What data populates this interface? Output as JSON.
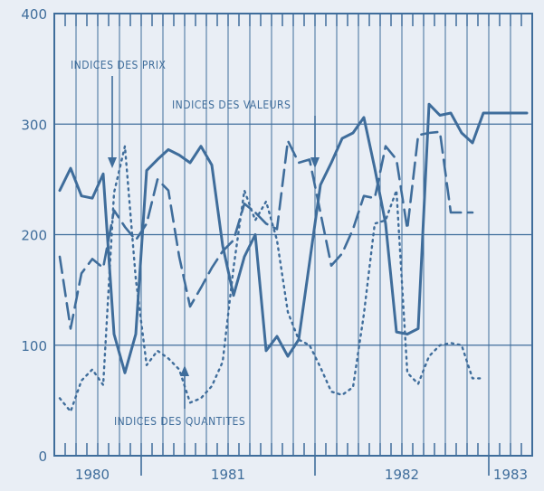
{
  "chart_data": {
    "type": "line",
    "title": "",
    "xlabel": "",
    "ylabel": "",
    "ylim": [
      0,
      400
    ],
    "yticks": [
      0,
      100,
      200,
      300,
      400
    ],
    "year_labels": [
      "1980",
      "1981",
      "1982",
      "1983"
    ],
    "grid": true,
    "colors": {
      "line": "#3f6d9b",
      "background": "#e9eef5"
    },
    "annotations": [
      {
        "text": "INDICES DES PRIX"
      },
      {
        "text": "INDICES DES VALEURS"
      },
      {
        "text": "INDICES DES QUANTITES"
      }
    ],
    "series": [
      {
        "name": "INDICES DES PRIX",
        "style": "solid",
        "x": [
          0,
          1,
          2,
          3,
          4,
          5,
          6,
          7,
          8,
          9,
          10,
          11,
          12,
          13,
          14,
          15,
          16,
          17,
          18,
          19,
          20,
          21,
          22,
          23,
          24,
          25,
          26,
          27,
          28,
          29,
          30,
          31,
          32,
          33,
          34,
          35,
          36,
          37,
          38,
          39,
          40,
          41,
          42,
          43
        ],
        "values": [
          240,
          260,
          235,
          233,
          255,
          110,
          75,
          110,
          258,
          268,
          277,
          272,
          265,
          280,
          263,
          190,
          145,
          180,
          200,
          95,
          108,
          90,
          105,
          175,
          245,
          265,
          287,
          292,
          306,
          260,
          210,
          112,
          110,
          115,
          318,
          308,
          310,
          292,
          283,
          310,
          310,
          310,
          310,
          310
        ]
      },
      {
        "name": "INDICES DES VALEURS",
        "style": "dashed",
        "x": [
          0,
          1,
          2,
          3,
          4,
          5,
          6,
          7,
          8,
          9,
          10,
          11,
          12,
          13,
          14,
          15,
          16,
          17,
          18,
          19,
          20,
          21,
          22,
          23,
          24,
          25,
          26,
          27,
          28,
          29,
          30,
          31,
          32,
          33,
          34,
          35,
          36,
          37,
          38
        ],
        "values": [
          180,
          115,
          165,
          178,
          170,
          222,
          207,
          195,
          210,
          250,
          240,
          180,
          135,
          152,
          170,
          185,
          195,
          228,
          220,
          210,
          205,
          285,
          265,
          268,
          220,
          172,
          183,
          205,
          235,
          233,
          280,
          268,
          205,
          290,
          292,
          293,
          220,
          220,
          220
        ]
      },
      {
        "name": "INDICES DES QUANTITES",
        "style": "dotted",
        "x": [
          0,
          1,
          2,
          3,
          4,
          5,
          6,
          7,
          8,
          9,
          10,
          11,
          12,
          13,
          14,
          15,
          16,
          17,
          18,
          19,
          20,
          21,
          22,
          23,
          24,
          25,
          26,
          27,
          28,
          29,
          30,
          31,
          32,
          33,
          34,
          35,
          36,
          37,
          38,
          39
        ],
        "values": [
          52,
          40,
          68,
          78,
          64,
          238,
          280,
          160,
          82,
          95,
          88,
          78,
          48,
          52,
          63,
          85,
          170,
          240,
          213,
          230,
          195,
          130,
          105,
          100,
          80,
          58,
          55,
          62,
          128,
          210,
          213,
          240,
          75,
          65,
          90,
          100,
          102,
          100,
          70,
          70
        ]
      }
    ]
  }
}
